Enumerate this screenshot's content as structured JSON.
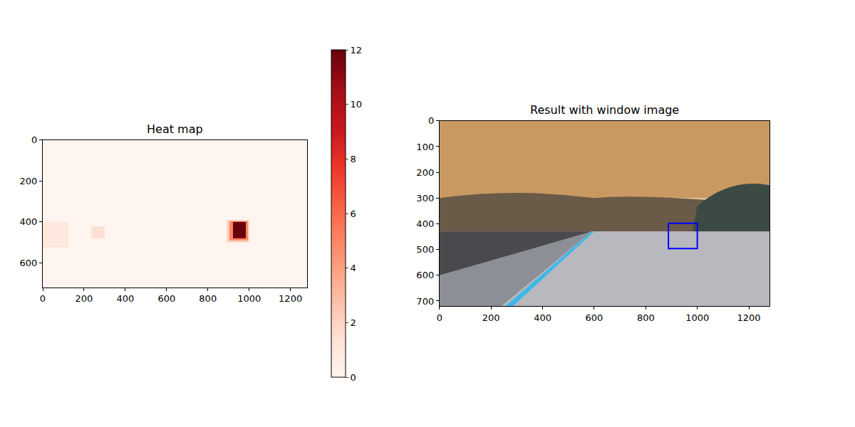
{
  "chart_data": [
    {
      "type": "heatmap",
      "title": "Heat map",
      "x": [
        0,
        125,
        235,
        300,
        890,
        905,
        920,
        985,
        995,
        1000,
        1280
      ],
      "y": [
        0,
        390,
        395,
        400,
        420,
        470,
        480,
        490,
        500,
        525,
        720
      ],
      "z": [
        [
          0,
          0,
          0,
          0,
          0,
          0,
          0,
          0,
          0,
          0
        ],
        [
          0,
          0,
          0,
          0,
          2,
          2,
          2,
          2,
          2,
          0
        ],
        [
          0,
          0,
          0,
          0,
          2,
          5,
          5,
          5,
          2,
          0
        ],
        [
          1,
          0,
          0,
          0,
          2,
          5,
          12,
          5,
          2,
          0
        ],
        [
          1,
          0,
          1.5,
          0,
          2,
          5,
          12,
          5,
          2,
          0
        ],
        [
          1,
          0,
          1.5,
          0,
          2,
          5,
          12,
          5,
          2,
          0
        ],
        [
          1,
          0,
          0,
          0,
          2,
          5,
          5,
          5,
          2,
          0
        ],
        [
          1,
          0,
          0,
          0,
          2,
          2,
          2,
          2,
          2,
          0
        ],
        [
          1,
          0,
          0,
          0,
          0,
          0,
          0,
          0,
          0,
          0
        ],
        [
          0,
          0,
          0,
          0,
          0,
          0,
          0,
          0,
          0,
          0
        ]
      ],
      "xlim": [
        0,
        1280
      ],
      "ylim": [
        720,
        0
      ],
      "xticks": [
        0,
        200,
        400,
        600,
        800,
        1000,
        1200
      ],
      "yticks": [
        0,
        200,
        400,
        600
      ],
      "colorbar": {
        "range": [
          0,
          12
        ],
        "ticks": [
          0,
          2,
          4,
          6,
          8,
          10,
          12
        ]
      }
    },
    {
      "type": "image",
      "title": "Result with window image",
      "xlim": [
        0,
        1280
      ],
      "ylim": [
        720,
        0
      ],
      "xticks": [
        0,
        200,
        400,
        600,
        800,
        1000,
        1200
      ],
      "yticks": [
        0,
        100,
        200,
        300,
        400,
        500,
        600,
        700
      ],
      "boxes": [
        {
          "x0": 888,
          "y0": 398,
          "x1": 1000,
          "y1": 496
        }
      ],
      "color": "#0000ff"
    }
  ]
}
